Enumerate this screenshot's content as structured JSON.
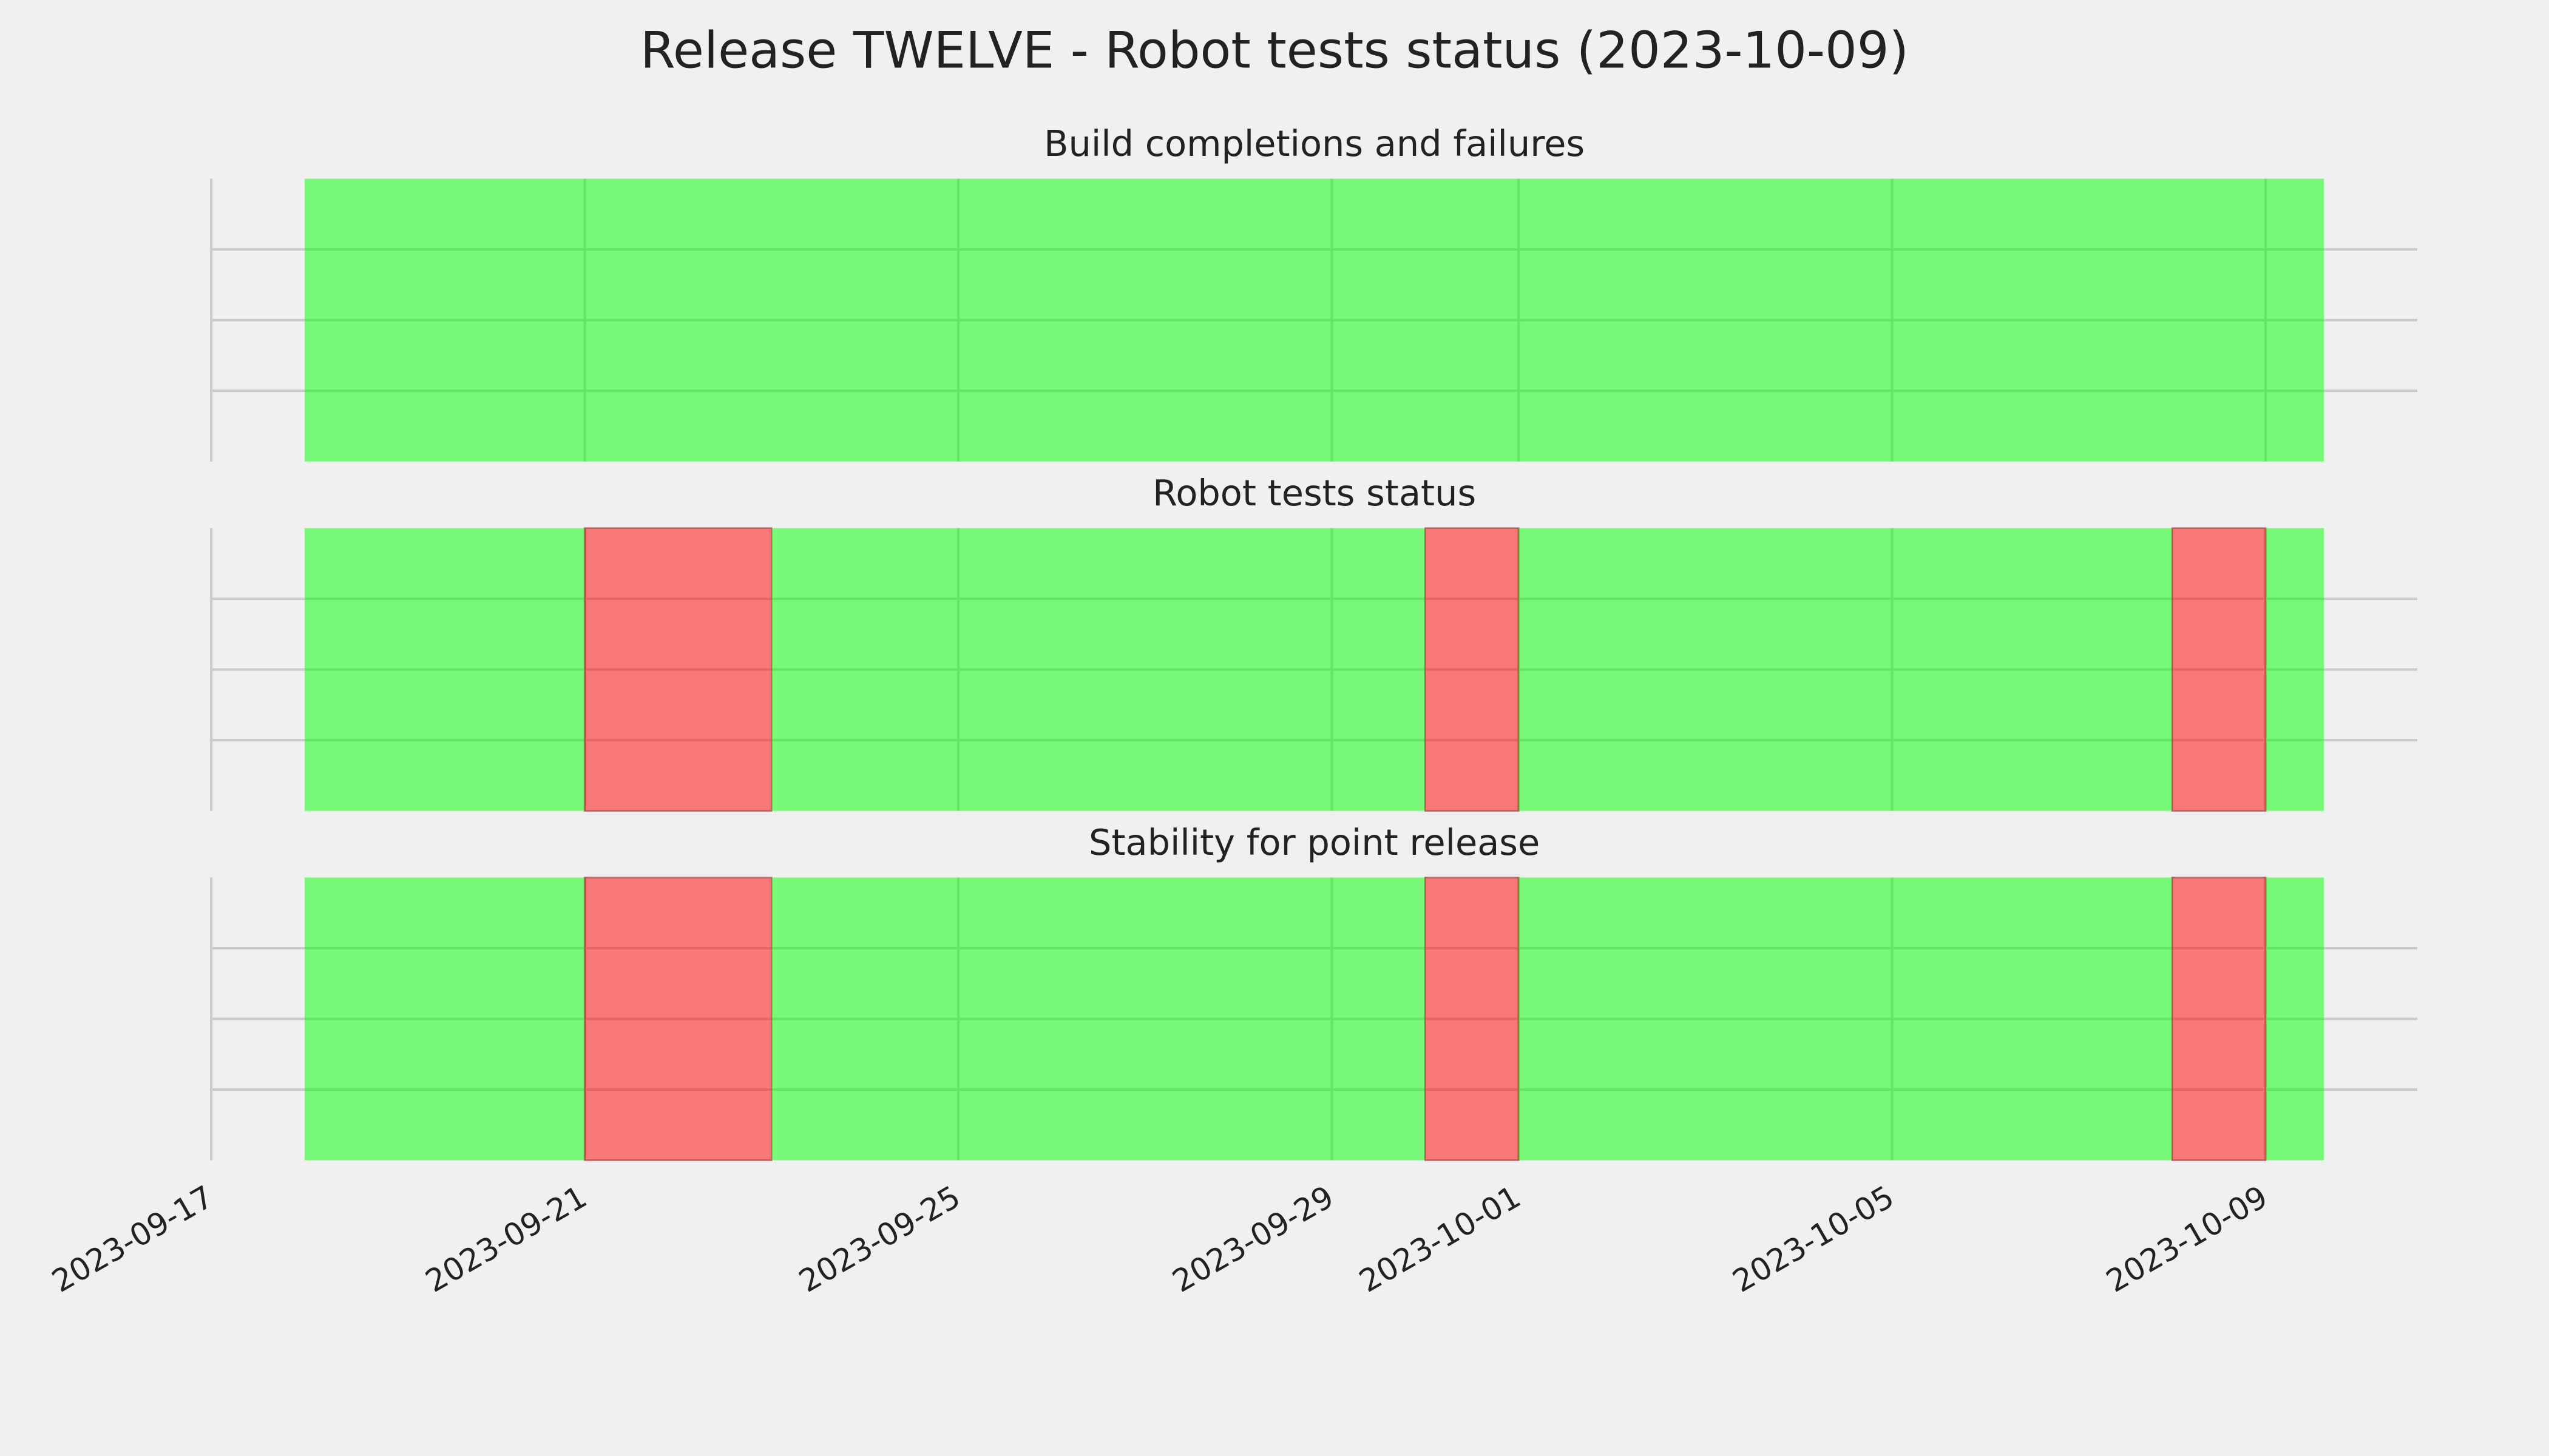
{
  "title": "Release TWELVE - Robot tests status (2023-10-09)",
  "chart_data": [
    {
      "type": "status_timeline",
      "title": "Build completions and failures",
      "x": [
        "2023-09-18"
      ],
      "x_end": "2023-10-09T15:00Z",
      "values": [
        1
      ],
      "color": "#00ff00",
      "fail_color": "#ff0000",
      "xlim": [
        "2023-09-17",
        "2023-10-10T15:00Z"
      ],
      "xticks": [
        "2023-09-17",
        "2023-09-21",
        "2023-09-25",
        "2023-09-29",
        "2023-10-01",
        "2023-10-05",
        "2023-10-09"
      ],
      "ylim": [
        0,
        1
      ],
      "yticks": [
        0.25,
        0.5,
        0.75
      ],
      "grid": true
    },
    {
      "type": "status_timeline",
      "title": "Robot tests status",
      "x": [
        "2023-09-18",
        "2023-09-21",
        "2023-09-23",
        "2023-09-30",
        "2023-10-01",
        "2023-10-08",
        "2023-10-09"
      ],
      "x_end": "2023-10-09T15:00Z",
      "values": [
        1,
        0,
        1,
        0,
        1,
        0,
        1
      ],
      "color": "#00ff00",
      "fail_color": "#ff0000",
      "xlim": [
        "2023-09-17",
        "2023-10-10T15:00Z"
      ],
      "xticks": [
        "2023-09-17",
        "2023-09-21",
        "2023-09-25",
        "2023-09-29",
        "2023-10-01",
        "2023-10-05",
        "2023-10-09"
      ],
      "ylim": [
        0,
        1
      ],
      "yticks": [
        0.25,
        0.5,
        0.75
      ],
      "grid": true
    },
    {
      "type": "status_timeline",
      "title": "Stability for point release",
      "x": [
        "2023-09-18",
        "2023-09-21",
        "2023-09-23",
        "2023-09-30",
        "2023-10-01",
        "2023-10-08",
        "2023-10-09"
      ],
      "x_end": "2023-10-09T15:00Z",
      "values": [
        1,
        0,
        1,
        0,
        1,
        0,
        1
      ],
      "color": "#00ff00",
      "fail_color": "#ff0000",
      "xlim": [
        "2023-09-17",
        "2023-10-10T15:00Z"
      ],
      "xticks": [
        "2023-09-17",
        "2023-09-21",
        "2023-09-25",
        "2023-09-29",
        "2023-10-01",
        "2023-10-05",
        "2023-10-09"
      ],
      "ylim": [
        0,
        1
      ],
      "yticks": [
        0.25,
        0.5,
        0.75
      ],
      "grid": true
    }
  ]
}
